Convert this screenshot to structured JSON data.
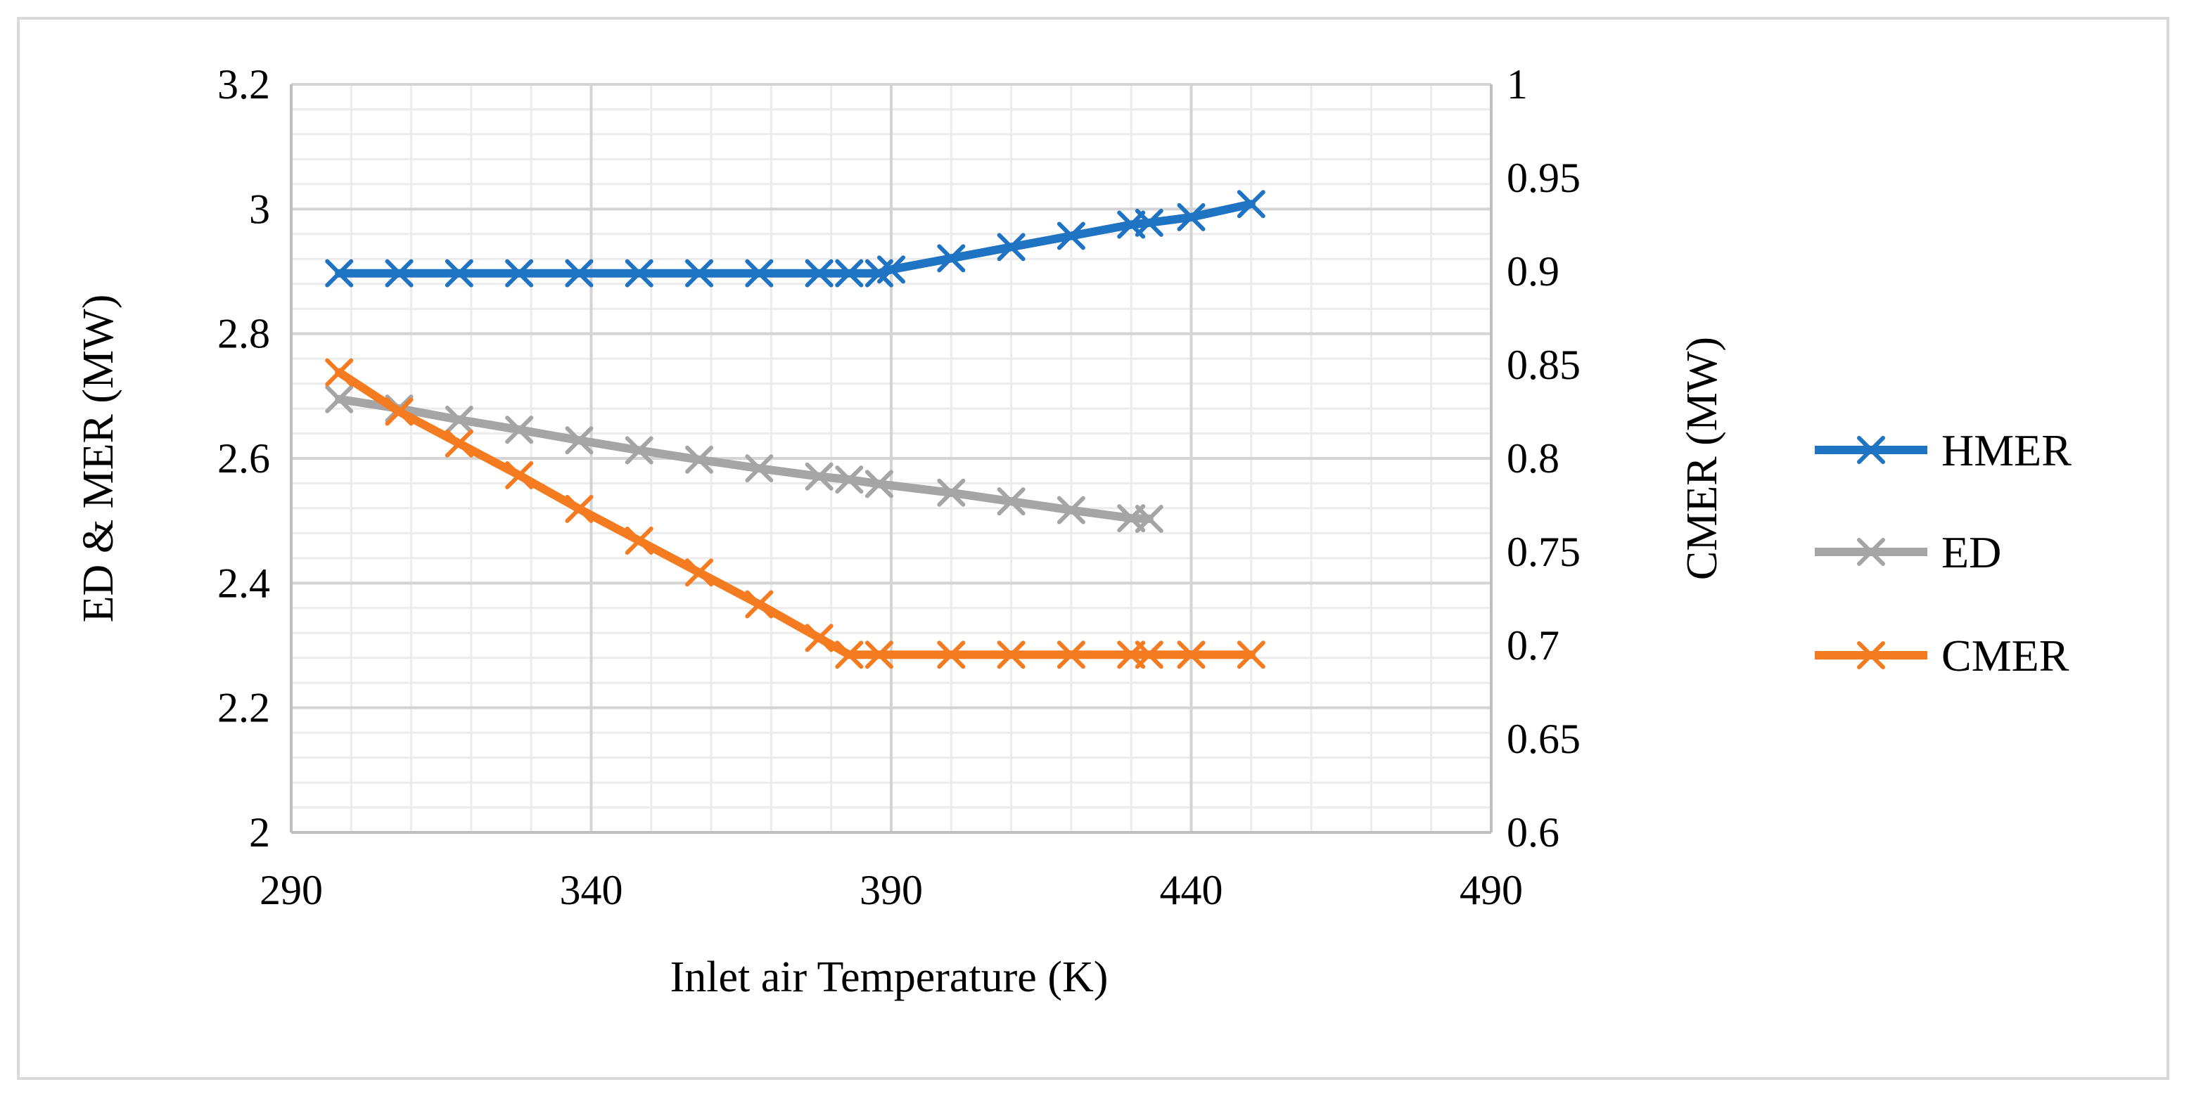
{
  "chart_data": {
    "type": "line",
    "title": "",
    "xlabel": "Inlet air Temperature (K)",
    "ylabel": "ED & MER (MW)",
    "y2label": "CMER (MW)",
    "xlim": [
      290,
      490
    ],
    "ylim": [
      2,
      3.2
    ],
    "y2lim": [
      0.6,
      1
    ],
    "x_ticks": [
      290,
      340,
      390,
      440,
      490
    ],
    "x_tick_labels": [
      "290",
      "340",
      "390",
      "440",
      "490"
    ],
    "y_ticks": [
      2,
      2.2,
      2.4,
      2.6,
      2.8,
      3,
      3.2
    ],
    "y_tick_labels": [
      "2",
      "2.2",
      "2.4",
      "2.6",
      "2.8",
      "3",
      "3.2"
    ],
    "y2_ticks": [
      0.6,
      0.65,
      0.7,
      0.75,
      0.8,
      0.85,
      0.9,
      0.95,
      1
    ],
    "y2_tick_labels": [
      "0.6",
      "0.65",
      "0.7",
      "0.75",
      "0.8",
      "0.85",
      "0.9",
      "0.95",
      "1"
    ],
    "legend_position": "right",
    "grid": true,
    "series": [
      {
        "name": "HMER",
        "axis": "right",
        "color": "#1f73c3",
        "x": [
          298,
          308,
          318,
          328,
          338,
          348,
          358,
          368,
          378,
          383,
          388,
          390,
          400,
          410,
          420,
          430,
          433,
          440,
          450
        ],
        "y": [
          0.899,
          0.899,
          0.899,
          0.899,
          0.899,
          0.899,
          0.899,
          0.899,
          0.899,
          0.899,
          0.899,
          0.901,
          0.907,
          0.913,
          0.919,
          0.925,
          0.926,
          0.929,
          0.936
        ]
      },
      {
        "name": "ED",
        "axis": "left",
        "color": "#a5a5a5",
        "x": [
          298,
          308,
          318,
          328,
          338,
          348,
          358,
          368,
          378,
          383,
          388,
          400,
          410,
          420,
          430,
          433
        ],
        "y": [
          2.695,
          2.68,
          2.662,
          2.646,
          2.629,
          2.613,
          2.598,
          2.584,
          2.571,
          2.566,
          2.559,
          2.545,
          2.531,
          2.517,
          2.504,
          2.503
        ]
      },
      {
        "name": "CMER",
        "axis": "right",
        "color": "#f47b20",
        "x": [
          298,
          308,
          318,
          328,
          338,
          348,
          358,
          368,
          378,
          383,
          388,
          400,
          410,
          420,
          430,
          433,
          440,
          450
        ],
        "y": [
          0.846,
          0.825,
          0.808,
          0.791,
          0.773,
          0.756,
          0.739,
          0.722,
          0.704,
          0.695,
          0.695,
          0.695,
          0.695,
          0.695,
          0.695,
          0.695,
          0.695,
          0.695
        ]
      }
    ]
  }
}
